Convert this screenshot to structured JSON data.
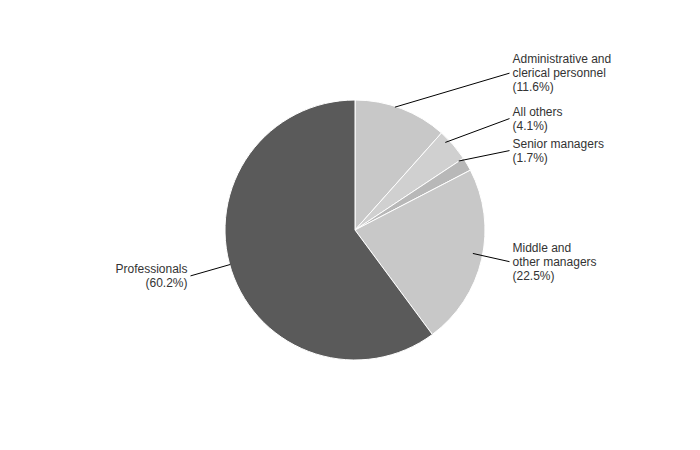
{
  "chart_data": {
    "type": "pie",
    "categories": [
      "Administrative and\nclerical personnel",
      "All others",
      "Senior managers",
      "Middle and\nother managers",
      "Professionals"
    ],
    "values": [
      11.6,
      4.1,
      1.7,
      22.5,
      60.2
    ],
    "value_labels": [
      "(11.6%)",
      "(4.1%)",
      "(1.7%)",
      "(22.5%)",
      "(60.2%)"
    ],
    "colors": [
      "#c8c8c8",
      "#d0d0d0",
      "#b8b8b8",
      "#c8c8c8",
      "#5a5a5a"
    ],
    "data_labels": true
  }
}
